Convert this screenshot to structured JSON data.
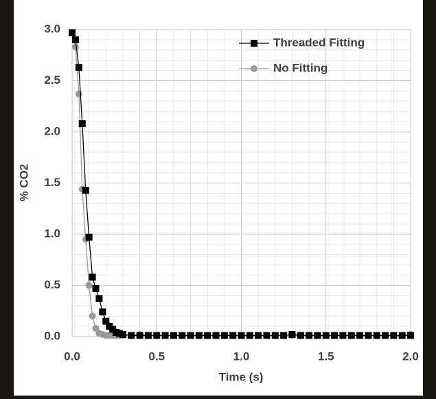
{
  "chart_data": {
    "type": "line",
    "xlabel": "Time (s)",
    "ylabel": "% CO2",
    "x": [
      0,
      0.02,
      0.04,
      0.06,
      0.08,
      0.1,
      0.12,
      0.14,
      0.16,
      0.18,
      0.2,
      0.22,
      0.24,
      0.26,
      0.28,
      0.3,
      0.35,
      0.4,
      0.45,
      0.5,
      0.55,
      0.6,
      0.65,
      0.7,
      0.75,
      0.8,
      0.85,
      0.9,
      0.95,
      1.0,
      1.05,
      1.1,
      1.15,
      1.2,
      1.25,
      1.3,
      1.35,
      1.4,
      1.45,
      1.5,
      1.55,
      1.6,
      1.65,
      1.7,
      1.75,
      1.8,
      1.85,
      1.9,
      1.95,
      2.0
    ],
    "series": [
      {
        "name": "Threaded Fitting",
        "color": "#000000",
        "marker": "square",
        "values": [
          2.97,
          2.9,
          2.63,
          2.08,
          1.43,
          0.97,
          0.58,
          0.47,
          0.37,
          0.24,
          0.15,
          0.1,
          0.07,
          0.04,
          0.03,
          0.02,
          0.01,
          0.01,
          0.01,
          0.01,
          0.01,
          0.01,
          0.01,
          0.01,
          0.01,
          0.01,
          0.01,
          0.01,
          0.01,
          0.01,
          0.01,
          0.01,
          0.01,
          0.01,
          0.01,
          0.02,
          0.01,
          0.01,
          0.01,
          0.01,
          0.01,
          0.01,
          0.01,
          0.01,
          0.01,
          0.01,
          0.01,
          0.01,
          0.01,
          0.01
        ]
      },
      {
        "name": "No Fitting",
        "color": "#999999",
        "marker": "circle",
        "values": [
          2.97,
          2.83,
          2.37,
          1.44,
          0.95,
          0.5,
          0.2,
          0.08,
          0.03,
          0.02,
          0.01,
          0.01,
          0.01,
          0.01,
          0.01,
          0.01,
          0.01,
          0.02,
          0.01,
          0.01,
          0.01,
          0.01,
          0.01,
          0.01,
          0.01,
          0.01,
          0.01,
          0.01,
          0.01,
          0.01,
          0.01,
          0.01,
          0.01,
          0.01,
          0.01,
          0.01,
          0.01,
          0.01,
          0.01,
          0.01,
          0.01,
          0.01,
          0.01,
          0.01,
          0.01,
          0.01,
          0.01,
          0.01,
          0.01,
          0.02
        ]
      }
    ],
    "xlim": [
      0,
      2
    ],
    "ylim": [
      0,
      3
    ],
    "xticks": [
      {
        "value": 0,
        "label": "0.0"
      },
      0.5,
      {
        "value": 1,
        "label": "1.0"
      },
      1.5,
      {
        "value": 2,
        "label": "2.0"
      }
    ],
    "yticks": [
      {
        "value": 0,
        "label": "0.0"
      },
      0.5,
      {
        "value": 1,
        "label": "1.0"
      },
      1.5,
      {
        "value": 2,
        "label": "2.0"
      },
      2.5,
      {
        "value": 3,
        "label": "3.0"
      }
    ],
    "grid": true,
    "minor_grid": true,
    "legend": "upper right"
  }
}
